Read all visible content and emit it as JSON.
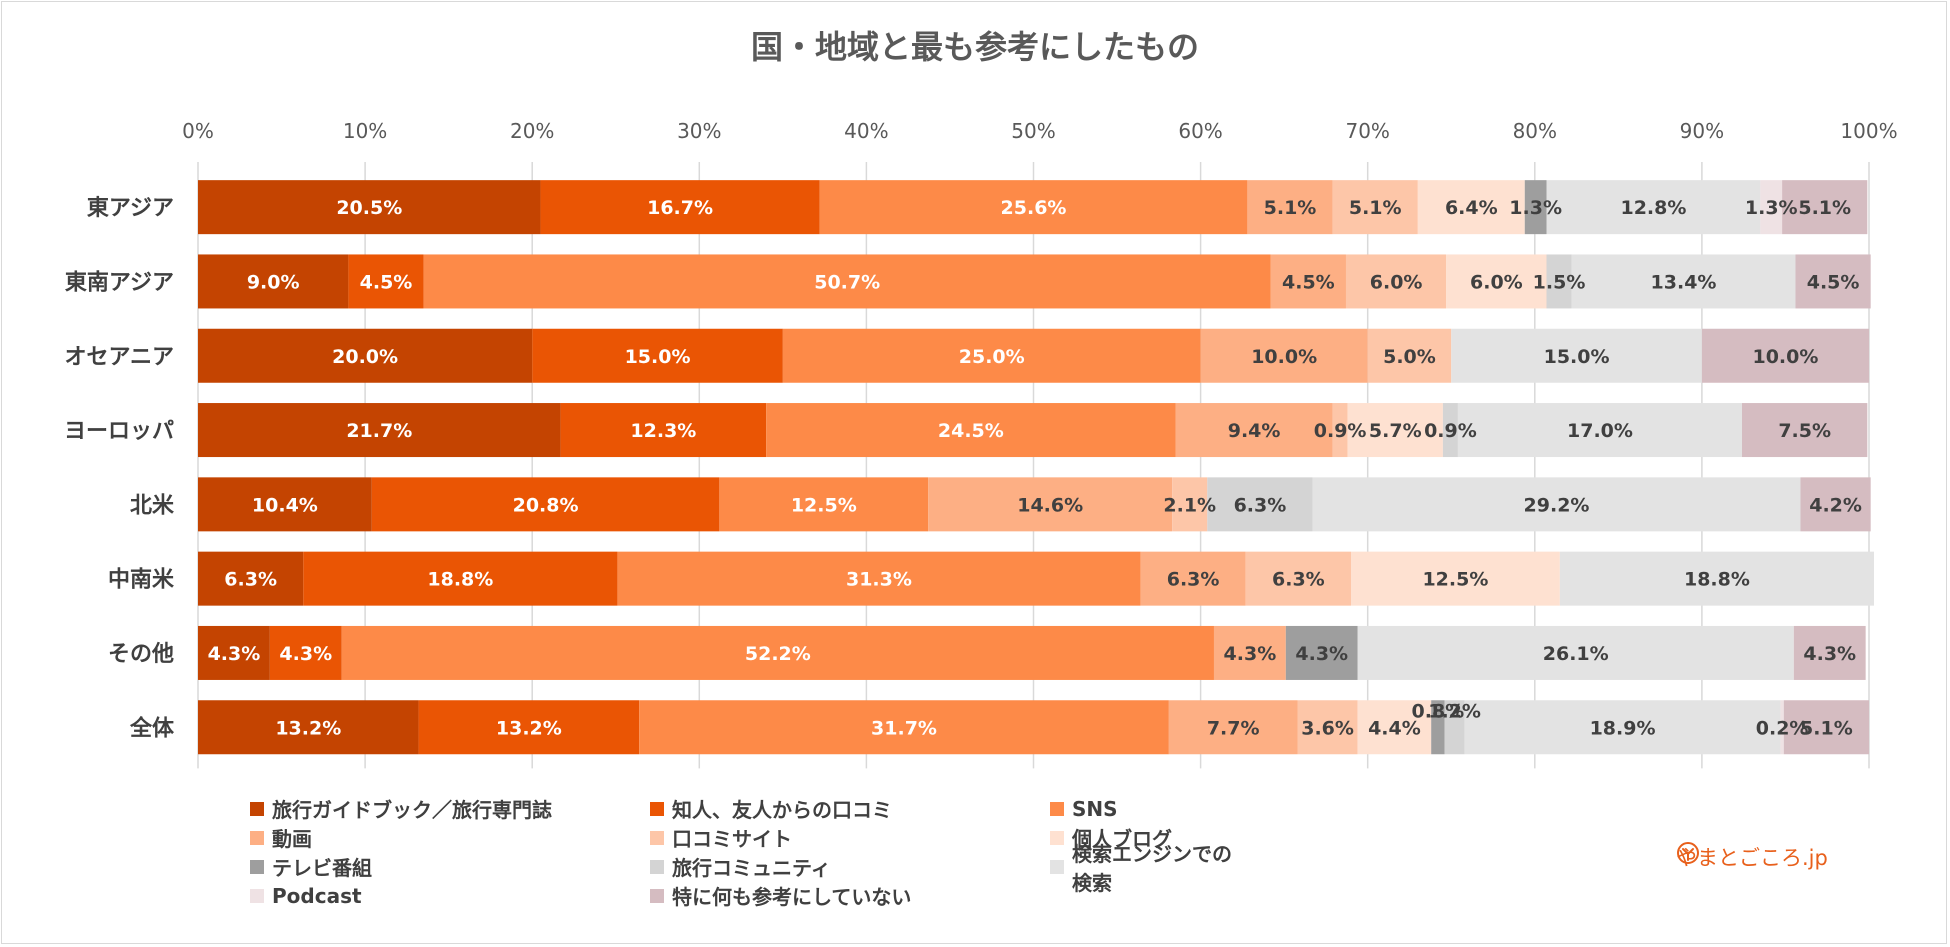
{
  "chart_data": {
    "type": "bar",
    "orientation": "horizontal",
    "stacked": "percent",
    "title": "国・地域と最も参考にしたもの",
    "x_ticks": [
      "0%",
      "10%",
      "20%",
      "30%",
      "40%",
      "50%",
      "60%",
      "70%",
      "80%",
      "90%",
      "100%"
    ],
    "xlim": [
      0,
      100
    ],
    "grid": true,
    "legend_position": "bottom",
    "categories": [
      "東アジア",
      "東南アジア",
      "オセアニア",
      "ヨーロッパ",
      "北米",
      "中南米",
      "その他",
      "全体"
    ],
    "series": [
      {
        "name": "旅行ガイドブック／旅行専門誌",
        "color": "#c44401",
        "values": [
          20.5,
          9.0,
          20.0,
          21.7,
          10.4,
          6.3,
          4.3,
          13.2
        ]
      },
      {
        "name": "知人、友人からの口コミ",
        "color": "#ea5504",
        "values": [
          16.7,
          4.5,
          15.0,
          12.3,
          20.8,
          18.8,
          4.3,
          13.2
        ]
      },
      {
        "name": "SNS",
        "color": "#fd8a48",
        "values": [
          25.6,
          50.7,
          25.0,
          24.5,
          12.5,
          31.3,
          52.2,
          31.7
        ]
      },
      {
        "name": "動画",
        "color": "#fdaf84",
        "values": [
          5.1,
          4.5,
          10.0,
          9.4,
          14.6,
          6.3,
          4.3,
          7.7
        ]
      },
      {
        "name": "口コミサイト",
        "color": "#fdc6a8",
        "values": [
          5.1,
          6.0,
          5.0,
          0.9,
          2.1,
          6.3,
          0,
          3.6
        ]
      },
      {
        "name": "個人ブログ",
        "color": "#fee1d1",
        "values": [
          6.4,
          6.0,
          0,
          5.7,
          0,
          12.5,
          0,
          4.4
        ]
      },
      {
        "name": "テレビ番組",
        "color": "#9e9e9e",
        "values": [
          1.3,
          0,
          0,
          0,
          0,
          0,
          4.3,
          0.8
        ]
      },
      {
        "name": "旅行コミュニティ",
        "color": "#d4d4d4",
        "values": [
          0,
          1.5,
          0,
          0.9,
          6.3,
          0,
          0,
          1.2
        ]
      },
      {
        "name": "検索エンジンでの検索",
        "color": "#e3e3e3",
        "values": [
          12.8,
          13.4,
          15.0,
          17.0,
          29.2,
          18.8,
          26.1,
          18.9
        ]
      },
      {
        "name": "Podcast",
        "color": "#efe2e4",
        "values": [
          1.3,
          0,
          0,
          0,
          0,
          0,
          0,
          0.2
        ]
      },
      {
        "name": "特に何も参考にしていない",
        "color": "#d5bcc1",
        "values": [
          5.1,
          4.5,
          10.0,
          7.5,
          4.2,
          0,
          4.3,
          5.1
        ]
      }
    ],
    "data_labels": [
      [
        "20.5%",
        "16.7%",
        "25.6%",
        "5.1%",
        "5.1%",
        "6.4%",
        "1.3%",
        null,
        "12.8%",
        "1.3%",
        "5.1%"
      ],
      [
        "9.0%",
        "4.5%",
        "50.7%",
        "4.5%",
        "6.0%",
        "6.0%",
        null,
        "1.5%",
        "13.4%",
        null,
        "4.5%"
      ],
      [
        "20.0%",
        "15.0%",
        "25.0%",
        "10.0%",
        "5.0%",
        null,
        null,
        null,
        "15.0%",
        null,
        "10.0%"
      ],
      [
        "21.7%",
        "12.3%",
        "24.5%",
        "9.4%",
        "0.9%",
        "5.7%",
        null,
        "0.9%",
        "17.0%",
        null,
        "7.5%"
      ],
      [
        "10.4%",
        "20.8%",
        "12.5%",
        "14.6%",
        "2.1%",
        null,
        null,
        "6.3%",
        "29.2%",
        null,
        "4.2%"
      ],
      [
        "6.3%",
        "18.8%",
        "31.3%",
        "6.3%",
        "6.3%",
        "12.5%",
        null,
        null,
        "18.8%",
        null,
        null
      ],
      [
        "4.3%",
        "4.3%",
        "52.2%",
        "4.3%",
        null,
        null,
        "4.3%",
        null,
        "26.1%",
        null,
        "4.3%"
      ],
      [
        "13.2%",
        "13.2%",
        "31.7%",
        "7.7%",
        "3.6%",
        "4.4%",
        "0.8%",
        "1.2%",
        "18.9%",
        "0.2%",
        "5.1%"
      ]
    ]
  },
  "brand": {
    "text": "やまとごころ.jp",
    "color": "#e8601c"
  }
}
